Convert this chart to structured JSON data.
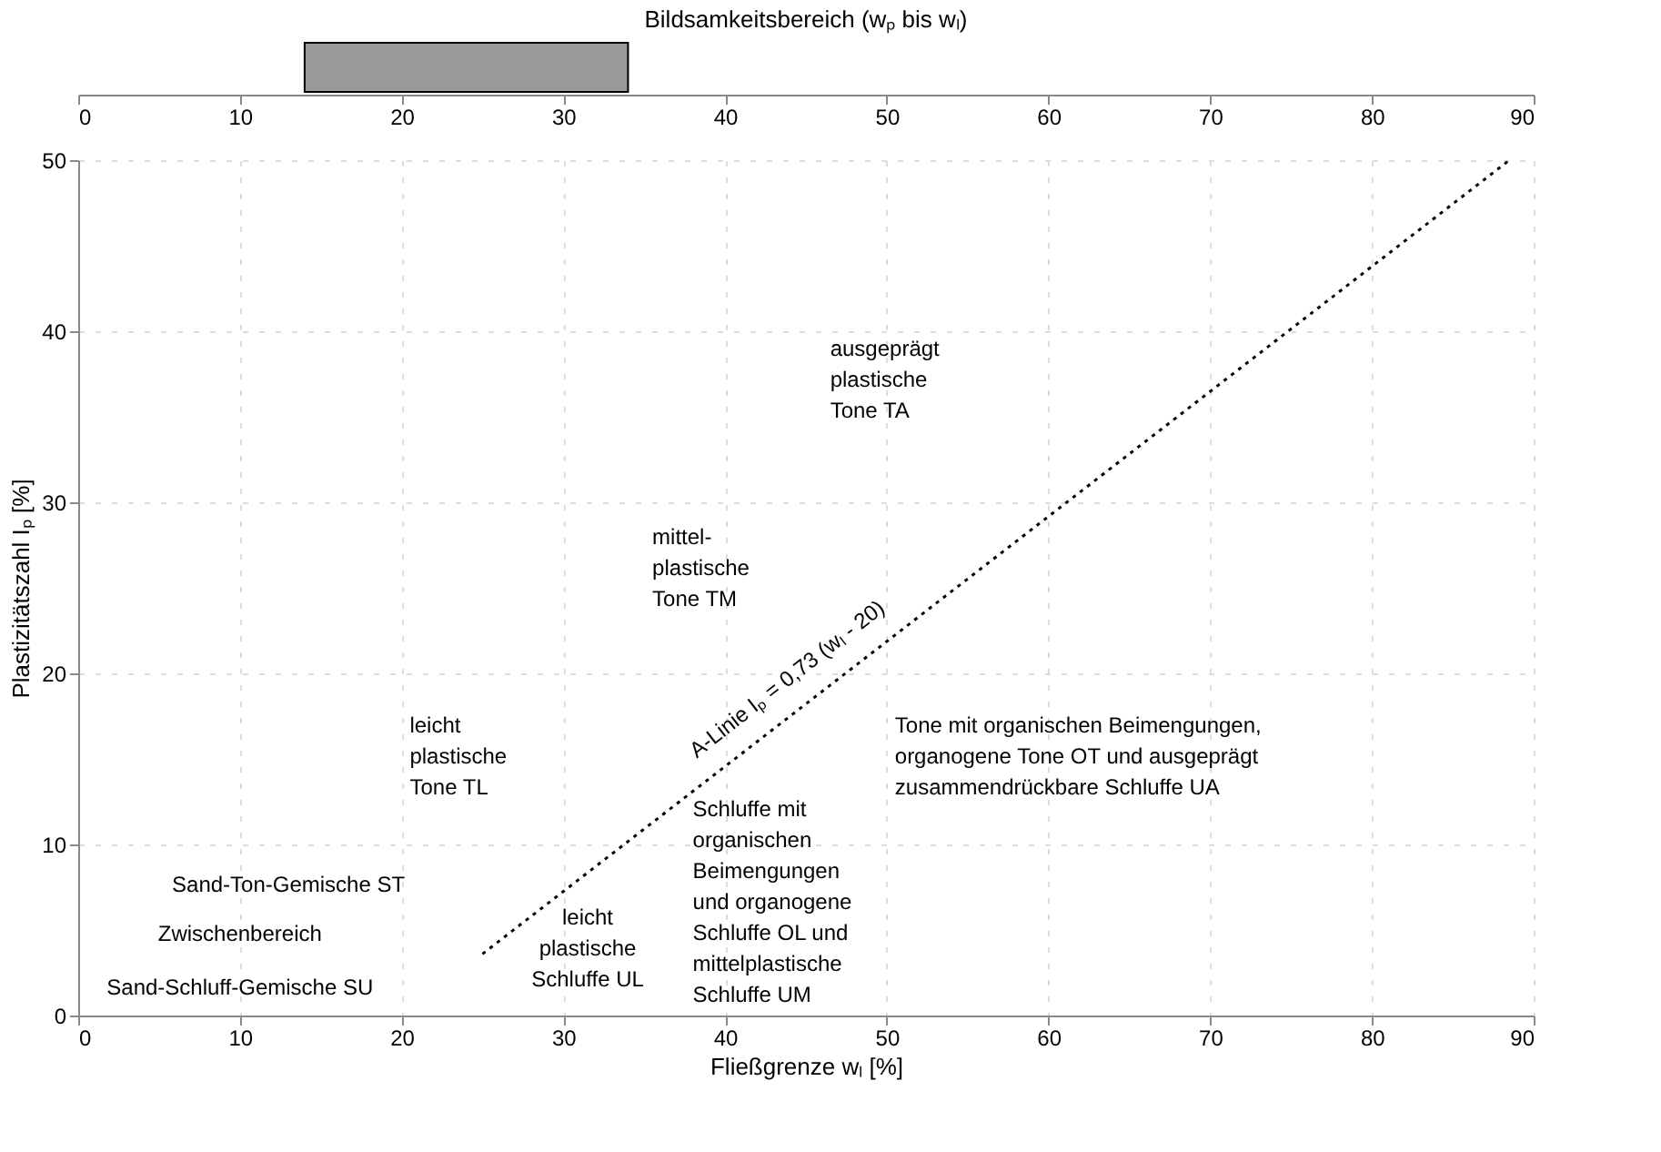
{
  "chart_data": [
    {
      "type": "bar",
      "orientation": "horizontal",
      "title": "Bildsamkeitsbereich (wₚ bis wₗ)",
      "categories": [
        null
      ],
      "base": [
        14
      ],
      "values": [
        20
      ],
      "color": "#9a9a9a",
      "xlim": [
        0,
        90
      ],
      "xticks": [
        0,
        10,
        20,
        30,
        40,
        50,
        60,
        70,
        80,
        90
      ],
      "tick_labels": "x"
    },
    {
      "type": "line",
      "xlabel": "Fließgrenze wₗ [%]",
      "ylabel": "Plastizitätszahl Iₚ [%]",
      "xlim": [
        0,
        90
      ],
      "xticks": [
        0,
        10,
        20,
        30,
        40,
        50,
        60,
        70,
        80,
        90
      ],
      "ylim": [
        0,
        50
      ],
      "yticks": [
        0,
        10,
        20,
        30,
        40,
        50
      ],
      "grid": true,
      "line_style": "dotted",
      "marker": "none",
      "series": [
        {
          "color": "#000000",
          "x": [
            25,
            88.5
          ],
          "values": [
            3.6,
            50
          ]
        }
      ],
      "annotations": [
        {
          "text": "A-Linie Iₚ = 0,73 (wₗ - 20)",
          "x": 45,
          "y": 18.25
        },
        "ausgeprägt\nplastische\nTone TA",
        "mittel-\nplastische\nTone TM",
        "leicht\nplastische\nTone TL",
        "Sand-Ton-Gemische ST",
        "Zwischenbereich",
        "Sand-Schluff-Gemische SU",
        "leicht\nplastische\nSchluffe UL",
        "Schluffe mit\norganischen\nBeimengungen\nund organogene\nSchluffe OL und\nmittelplastische\nSchluffe UM",
        "Tone mit organischen Beimengungen,\norganogene Tone OT und ausgeprägt\nzusammendrückbare Schluffe UA"
      ]
    }
  ]
}
